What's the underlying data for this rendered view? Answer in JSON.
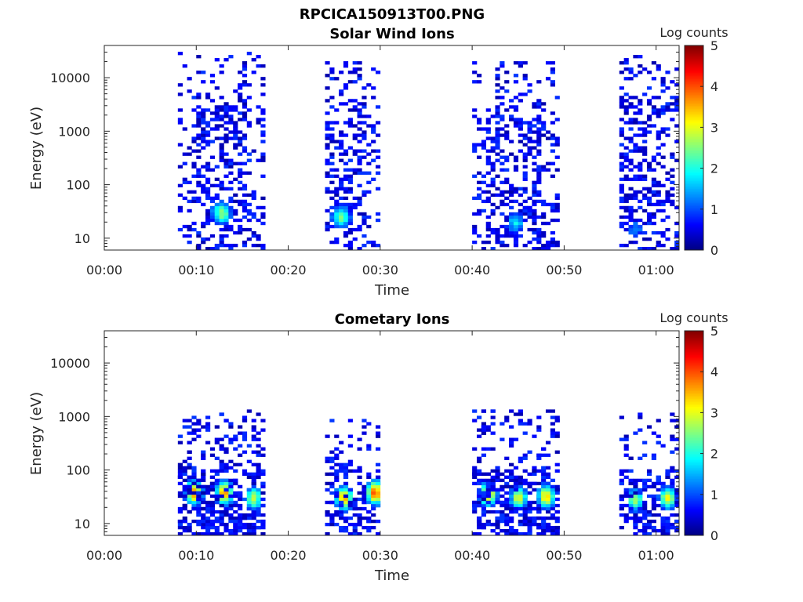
{
  "figure_title": "RPCICA150913T00.PNG",
  "colors": {
    "jet": [
      "#000080",
      "#0000ff",
      "#0080ff",
      "#00ffff",
      "#80ff80",
      "#ffff00",
      "#ff8000",
      "#ff0000",
      "#800000"
    ]
  },
  "chart_data": [
    {
      "type": "heatmap",
      "title": "Solar Wind Ions",
      "xlabel": "Time",
      "ylabel": "Energy (eV)",
      "x_ticks": [
        "00:00",
        "00:10",
        "00:20",
        "00:30",
        "00:40",
        "00:50",
        "01:00"
      ],
      "x_range_min": [
        0,
        62.5
      ],
      "y_ticks": [
        "10",
        "100",
        "1000",
        "10000"
      ],
      "y_range_ev": [
        6,
        40000
      ],
      "y_scale": "log",
      "colorbar": {
        "label": "Log counts",
        "ticks": [
          "0",
          "1",
          "2",
          "3",
          "4",
          "5"
        ],
        "range": [
          0,
          5
        ]
      },
      "bursts": [
        {
          "start_min": 8,
          "end_min": 17.5,
          "sparse_max_ev": 30000,
          "dense_max_ev": 3000,
          "core_min": 12.5,
          "core_ev": 30,
          "peak_log": 2.6
        },
        {
          "start_min": 24,
          "end_min": 30,
          "sparse_max_ev": 20000,
          "dense_max_ev": 1500,
          "core_min": 25.5,
          "core_ev": 25,
          "peak_log": 2.4
        },
        {
          "start_min": 40,
          "end_min": 49.5,
          "sparse_max_ev": 20000,
          "dense_max_ev": 2000,
          "core_min": 44.5,
          "core_ev": 20,
          "peak_log": 1.8
        },
        {
          "start_min": 56,
          "end_min": 62.3,
          "sparse_max_ev": 25000,
          "dense_max_ev": 4000,
          "core_min": 57.5,
          "core_ev": 15,
          "peak_log": 1.3
        }
      ]
    },
    {
      "type": "heatmap",
      "title": "Cometary Ions",
      "xlabel": "Time",
      "ylabel": "Energy (eV)",
      "x_ticks": [
        "00:00",
        "00:10",
        "00:20",
        "00:30",
        "00:40",
        "00:50",
        "01:00"
      ],
      "x_range_min": [
        0,
        62.5
      ],
      "y_ticks": [
        "10",
        "100",
        "1000",
        "10000"
      ],
      "y_range_ev": [
        6,
        40000
      ],
      "y_scale": "log",
      "colorbar": {
        "label": "Log counts",
        "ticks": [
          "0",
          "1",
          "2",
          "3",
          "4",
          "5"
        ],
        "range": [
          0,
          5
        ]
      },
      "bursts": [
        {
          "start_min": 8,
          "end_min": 17.5,
          "sparse_max_ev": 1200,
          "core_min": 9.5,
          "core_ev": 38,
          "peak_log": 3.8
        },
        {
          "start_min": 8,
          "end_min": 17.5,
          "sparse_max_ev": 1200,
          "core_min": 12.8,
          "core_ev": 38,
          "peak_log": 3.7
        },
        {
          "start_min": 8,
          "end_min": 17.5,
          "sparse_max_ev": 1200,
          "core_min": 16,
          "core_ev": 30,
          "peak_log": 2.8
        },
        {
          "start_min": 24,
          "end_min": 30,
          "sparse_max_ev": 900,
          "core_min": 25.8,
          "core_ev": 30,
          "peak_log": 3.6
        },
        {
          "start_min": 24,
          "end_min": 30,
          "sparse_max_ev": 900,
          "core_min": 29.2,
          "core_ev": 38,
          "peak_log": 4.0
        },
        {
          "start_min": 40,
          "end_min": 49.5,
          "sparse_max_ev": 1200,
          "core_min": 41.5,
          "core_ev": 35,
          "peak_log": 3.6
        },
        {
          "start_min": 40,
          "end_min": 49.5,
          "sparse_max_ev": 1200,
          "core_min": 44.8,
          "core_ev": 30,
          "peak_log": 3.0
        },
        {
          "start_min": 40,
          "end_min": 49.5,
          "sparse_max_ev": 1200,
          "core_min": 47.8,
          "core_ev": 32,
          "peak_log": 3.3
        },
        {
          "start_min": 56,
          "end_min": 62.3,
          "sparse_max_ev": 1200,
          "core_min": 57.5,
          "core_ev": 28,
          "peak_log": 2.7
        },
        {
          "start_min": 56,
          "end_min": 62.3,
          "sparse_max_ev": 1200,
          "core_min": 61,
          "core_ev": 30,
          "peak_log": 3.0
        }
      ]
    }
  ]
}
